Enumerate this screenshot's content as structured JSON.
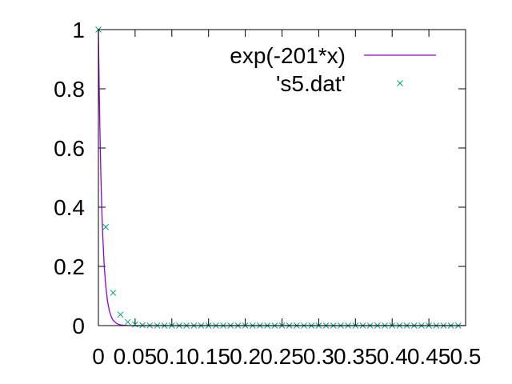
{
  "chart_data": {
    "type": "line",
    "title": "",
    "xlabel": "",
    "ylabel": "",
    "xlim": [
      0,
      0.5
    ],
    "ylim": [
      0,
      1
    ],
    "x_ticks": [
      "0",
      "0.05",
      "0.1",
      "0.15",
      "0.2",
      "0.25",
      "0.3",
      "0.35",
      "0.4",
      "0.45",
      "0.5"
    ],
    "y_ticks": [
      "0",
      "0.2",
      "0.4",
      "0.6",
      "0.8",
      "1"
    ],
    "grid": false,
    "legend_position": "top-right",
    "series": [
      {
        "name": "exp(-201*x)",
        "kind": "line",
        "color": "#9400d3",
        "function": "exp(-201*x)",
        "x": [
          0,
          0.001,
          0.002,
          0.003,
          0.004,
          0.005,
          0.006,
          0.008,
          0.01,
          0.0125,
          0.015,
          0.0175,
          0.02,
          0.025,
          0.03,
          0.035,
          0.04,
          0.05,
          0.1,
          0.2,
          0.3,
          0.4,
          0.5
        ],
        "y": [
          1.0,
          0.818,
          0.669,
          0.547,
          0.448,
          0.366,
          0.299,
          0.2,
          0.134,
          0.081,
          0.049,
          0.03,
          0.018,
          0.0066,
          0.0024,
          0.0009,
          0.0003,
          4e-05,
          0,
          0,
          0,
          0,
          0
        ]
      },
      {
        "name": "'s5.dat'",
        "kind": "points",
        "marker": "x",
        "color": "#009e73",
        "x": [
          0,
          0.01,
          0.02,
          0.03,
          0.04,
          0.05,
          0.06,
          0.07,
          0.08,
          0.09,
          0.1,
          0.11,
          0.12,
          0.13,
          0.14,
          0.15,
          0.16,
          0.17,
          0.18,
          0.19,
          0.2,
          0.21,
          0.22,
          0.23,
          0.24,
          0.25,
          0.26,
          0.27,
          0.28,
          0.29,
          0.3,
          0.31,
          0.32,
          0.33,
          0.34,
          0.35,
          0.36,
          0.37,
          0.38,
          0.39,
          0.4,
          0.41,
          0.42,
          0.43,
          0.44,
          0.45,
          0.46,
          0.47,
          0.48,
          0.49
        ],
        "y": [
          1.0,
          0.333,
          0.111,
          0.037,
          0.012,
          0.004,
          0.0014,
          0.0005,
          0.0002,
          5e-05,
          0,
          0,
          0,
          0,
          0,
          0,
          0,
          0,
          0,
          0,
          0,
          0,
          0,
          0,
          0,
          0,
          0,
          0,
          0,
          0,
          0,
          0,
          0,
          0,
          0,
          0,
          0,
          0,
          0,
          0,
          0,
          0,
          0,
          0,
          0,
          0,
          0,
          0,
          0,
          0
        ]
      }
    ]
  }
}
